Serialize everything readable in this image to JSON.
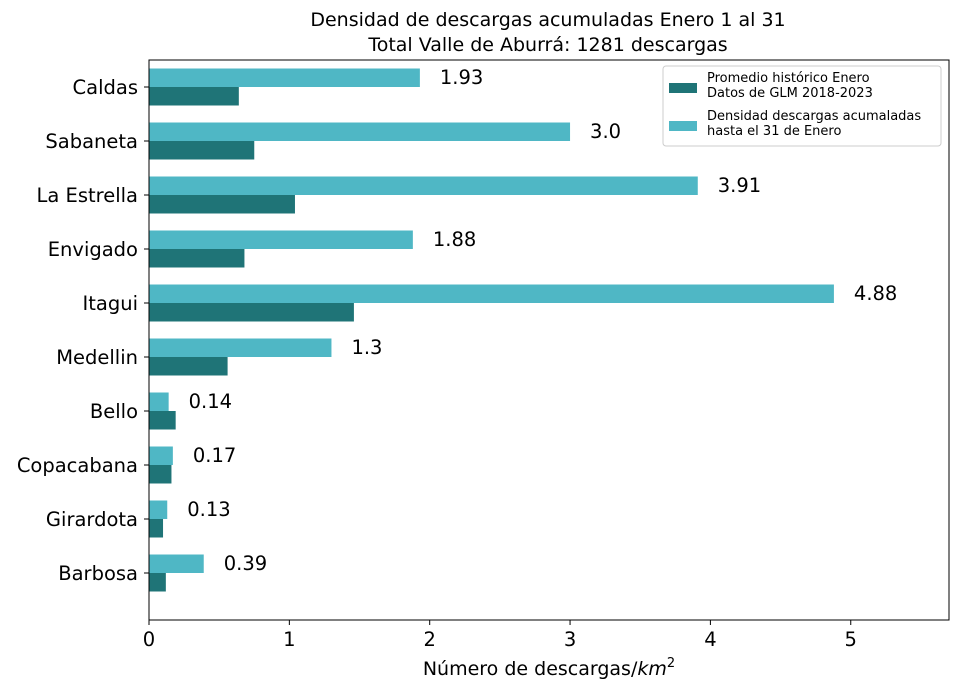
{
  "chart_data": {
    "type": "bar",
    "orientation": "horizontal",
    "title": "Densidad de descargas acumuladas Enero 1 al 31",
    "subtitle": "Total Valle de Aburrá: 1281 descargas",
    "xlabel": "Número de descargas/",
    "xlabel_math": "km",
    "xlabel_sup": "2",
    "xlim": [
      0,
      5.7
    ],
    "xticks": [
      0,
      1,
      2,
      3,
      4,
      5
    ],
    "grid": false,
    "legend_position": "top-right",
    "categories": [
      "Caldas",
      "Sabaneta",
      "La Estrella",
      "Envigado",
      "Itagui",
      "Medellin",
      "Bello",
      "Copacabana",
      "Girardota",
      "Barbosa"
    ],
    "series": [
      {
        "name": "Promedio histórico Enero\nDatos de GLM 2018-2023",
        "legend_lines": [
          "Promedio histórico Enero",
          "Datos de GLM 2018-2023"
        ],
        "color": "#1f7477",
        "values": [
          0.64,
          0.75,
          1.04,
          0.68,
          1.46,
          0.56,
          0.19,
          0.16,
          0.1,
          0.12
        ]
      },
      {
        "name": "Densidad descargas acumaladas\nhasta el 31 de Enero",
        "legend_lines": [
          "Densidad descargas acumaladas",
          "hasta el 31 de Enero"
        ],
        "color": "#4fb7c5",
        "values": [
          1.93,
          3.0,
          3.91,
          1.88,
          4.88,
          1.3,
          0.14,
          0.17,
          0.13,
          0.39
        ]
      }
    ],
    "data_labels": [
      "1.93",
      "3.0",
      "3.91",
      "1.88",
      "4.88",
      "1.3",
      "0.14",
      "0.17",
      "0.13",
      "0.39"
    ]
  }
}
